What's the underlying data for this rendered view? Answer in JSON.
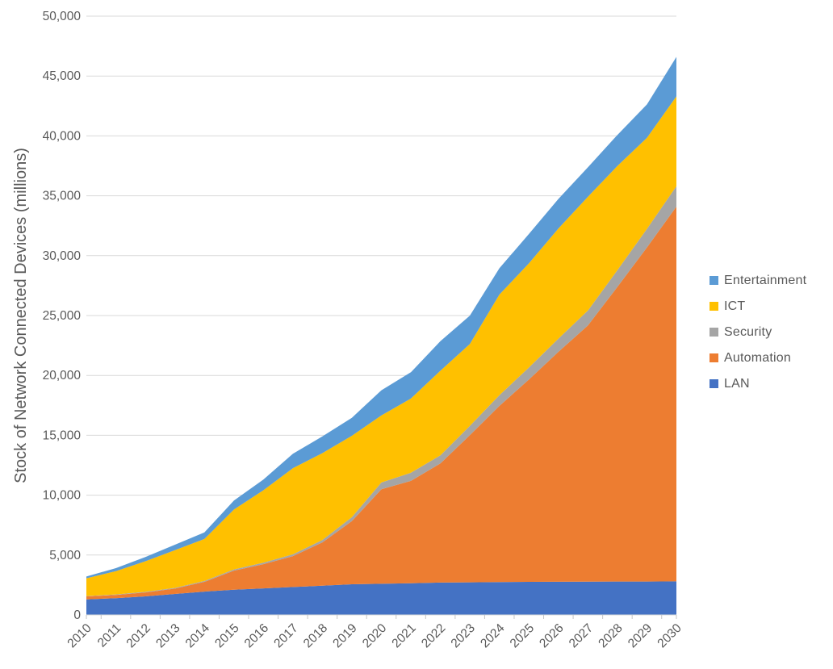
{
  "chart_data": {
    "type": "area",
    "stacked": true,
    "title": "",
    "xlabel": "",
    "ylabel": "Stock of Network Connected Devices (millions)",
    "ylim": [
      0,
      50000
    ],
    "ytick_interval": 5000,
    "ytick_labels": [
      "0",
      "5,000",
      "10,000",
      "15,000",
      "20,000",
      "25,000",
      "30,000",
      "35,000",
      "40,000",
      "45,000",
      "50,000"
    ],
    "grid": true,
    "legend_position": "right",
    "categories": [
      "2010",
      "2011",
      "2012",
      "2013",
      "2014",
      "2015",
      "2016",
      "2017",
      "2018",
      "2019",
      "2020",
      "2021",
      "2022",
      "2023",
      "2024",
      "2025",
      "2026",
      "2027",
      "2028",
      "2029",
      "2030"
    ],
    "series": [
      {
        "name": "LAN",
        "color": "#4472C4",
        "values": [
          1300,
          1400,
          1550,
          1750,
          1950,
          2100,
          2220,
          2330,
          2440,
          2560,
          2600,
          2650,
          2700,
          2720,
          2750,
          2760,
          2770,
          2780,
          2790,
          2790,
          2800
        ]
      },
      {
        "name": "Automation",
        "color": "#ED7D31",
        "values": [
          250,
          270,
          330,
          450,
          810,
          1600,
          2020,
          2580,
          3620,
          5270,
          7900,
          8540,
          9950,
          12290,
          14700,
          16900,
          19200,
          21400,
          24600,
          27900,
          31300
        ]
      },
      {
        "name": "Security",
        "color": "#A5A5A5",
        "values": [
          30,
          40,
          50,
          60,
          80,
          100,
          120,
          150,
          200,
          330,
          560,
          680,
          680,
          780,
          900,
          1000,
          1100,
          1240,
          1400,
          1550,
          1700
        ]
      },
      {
        "name": "ICT",
        "color": "#FFC000",
        "values": [
          1480,
          1950,
          2550,
          3150,
          3500,
          5000,
          6050,
          7200,
          7250,
          6800,
          5600,
          6200,
          7060,
          6840,
          8400,
          8700,
          9200,
          9500,
          8700,
          7600,
          7500
        ]
      },
      {
        "name": "Entertainment",
        "color": "#5B9BD5",
        "values": [
          150,
          250,
          350,
          450,
          550,
          750,
          900,
          1200,
          1400,
          1500,
          2100,
          2200,
          2470,
          2360,
          2200,
          2450,
          2470,
          2460,
          2590,
          2790,
          3300
        ]
      }
    ]
  },
  "legend": {
    "items": [
      {
        "label": "Entertainment",
        "color": "#5B9BD5"
      },
      {
        "label": "ICT",
        "color": "#FFC000"
      },
      {
        "label": "Security",
        "color": "#A5A5A5"
      },
      {
        "label": "Automation",
        "color": "#ED7D31"
      },
      {
        "label": "LAN",
        "color": "#4472C4"
      }
    ]
  },
  "axes": {
    "text_color": "#595959",
    "grid_color": "#D9D9D9",
    "tick_color": "#C6C6C6"
  }
}
